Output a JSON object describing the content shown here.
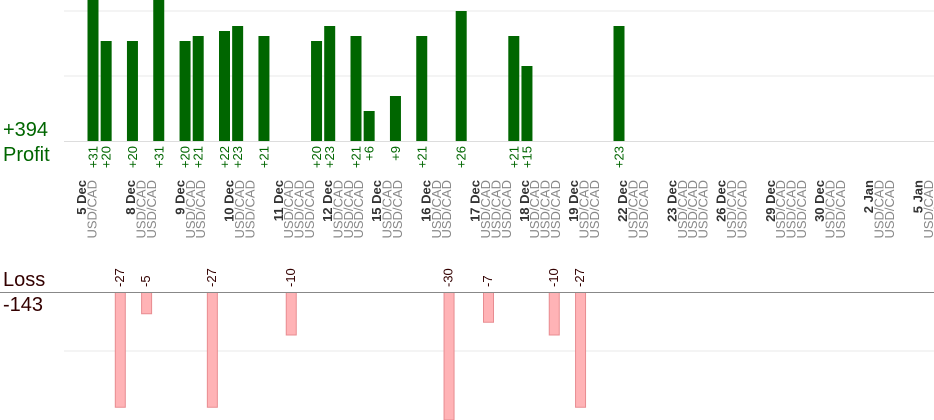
{
  "colors": {
    "profit": "#006600",
    "loss_fill": "#ffb3b6",
    "loss_stroke": "#e88c91",
    "loss_text": "#330000",
    "grid": "#e8e8e8",
    "baseline": "#888888",
    "date_text": "#333333",
    "pair_text": "#888888"
  },
  "summary": {
    "profit_total": "+394",
    "profit_label": "Profit",
    "loss_label": "Loss",
    "loss_total": "-143"
  },
  "chart_data": {
    "type": "bar",
    "title": "",
    "xlabel": "",
    "ylabel": "",
    "profit_axis_max": 30,
    "loss_axis_max": 27,
    "dates": [
      {
        "date": "5 Dec",
        "pairs": [
          "USD/CAD"
        ]
      },
      {
        "date": "8 Dec",
        "pairs": [
          "USD/CAD",
          "USD/CAD"
        ]
      },
      {
        "date": "9 Dec",
        "pairs": [
          "USD/CAD",
          "USD/CAD"
        ]
      },
      {
        "date": "10 Dec",
        "pairs": [
          "USD/CAD",
          "USD/CAD"
        ]
      },
      {
        "date": "11 Dec",
        "pairs": [
          "USD/CAD",
          "USD/CAD",
          "USD/CAD"
        ]
      },
      {
        "date": "12 Dec",
        "pairs": [
          "USD/CAD",
          "USD/CAD",
          "USD/CAD"
        ]
      },
      {
        "date": "15 Dec",
        "pairs": [
          "USD/CAD",
          "USD/CAD"
        ]
      },
      {
        "date": "16 Dec",
        "pairs": [
          "USD/CAD",
          "USD/CAD"
        ]
      },
      {
        "date": "17 Dec",
        "pairs": [
          "USD/CAD",
          "USD/CAD",
          "USD/CAD"
        ]
      },
      {
        "date": "18 Dec",
        "pairs": [
          "USD/CAD",
          "USD/CAD",
          "USD/CAD"
        ]
      },
      {
        "date": "19 Dec",
        "pairs": [
          "USD/CAD",
          "USD/CAD"
        ]
      },
      {
        "date": "22 Dec",
        "pairs": [
          "USD/CAD",
          "USD/CAD"
        ]
      },
      {
        "date": "23 Dec",
        "pairs": [
          "USD/CAD",
          "USD/CAD",
          "USD/CAD"
        ]
      },
      {
        "date": "26 Dec",
        "pairs": [
          "USD/CAD",
          "USD/CAD"
        ]
      },
      {
        "date": "29 Dec",
        "pairs": [
          "USD/CAD",
          "USD/CAD",
          "USD/CAD"
        ]
      },
      {
        "date": "30 Dec",
        "pairs": [
          "USD/CAD",
          "USD/CAD"
        ]
      },
      {
        "date": "2 Jan",
        "pairs": [
          "USD/CAD",
          "USD/CAD"
        ]
      },
      {
        "date": "5 Jan",
        "pairs": [
          "USD/CAD",
          "USD/CAD"
        ]
      }
    ],
    "trades": [
      {
        "date": "5 Dec",
        "pair": "USD/CAD",
        "value": 31
      },
      {
        "date": "8 Dec",
        "pair": "USD/CAD",
        "value": 20
      },
      {
        "date": "8 Dec",
        "pair": "USD/CAD",
        "value": -27
      },
      {
        "date": "9 Dec",
        "pair": "USD/CAD",
        "value": 20
      },
      {
        "date": "9 Dec",
        "pair": "USD/CAD",
        "value": -5
      },
      {
        "date": "10 Dec",
        "pair": "USD/CAD",
        "value": 31
      },
      {
        "date": "10 Dec",
        "pair": "USD/CAD",
        "value": 0
      },
      {
        "date": "11 Dec",
        "pair": "USD/CAD",
        "value": 20
      },
      {
        "date": "11 Dec",
        "pair": "USD/CAD",
        "value": 21
      },
      {
        "date": "11 Dec",
        "pair": "USD/CAD",
        "value": -27
      },
      {
        "date": "12 Dec",
        "pair": "USD/CAD",
        "value": 22
      },
      {
        "date": "12 Dec",
        "pair": "USD/CAD",
        "value": 23
      },
      {
        "date": "12 Dec",
        "pair": "USD/CAD",
        "value": 0
      },
      {
        "date": "15 Dec",
        "pair": "USD/CAD",
        "value": 21
      },
      {
        "date": "15 Dec",
        "pair": "USD/CAD",
        "value": 0
      },
      {
        "date": "16 Dec",
        "pair": "USD/CAD",
        "value": -10
      },
      {
        "date": "16 Dec",
        "pair": "USD/CAD",
        "value": 0
      },
      {
        "date": "17 Dec",
        "pair": "USD/CAD",
        "value": 20
      },
      {
        "date": "17 Dec",
        "pair": "USD/CAD",
        "value": 23
      },
      {
        "date": "17 Dec",
        "pair": "USD/CAD",
        "value": 0
      },
      {
        "date": "18 Dec",
        "pair": "USD/CAD",
        "value": 21
      },
      {
        "date": "18 Dec",
        "pair": "USD/CAD",
        "value": 6
      },
      {
        "date": "18 Dec",
        "pair": "USD/CAD",
        "value": 0
      },
      {
        "date": "19 Dec",
        "pair": "USD/CAD",
        "value": 9
      },
      {
        "date": "19 Dec",
        "pair": "USD/CAD",
        "value": 0
      },
      {
        "date": "22 Dec",
        "pair": "USD/CAD",
        "value": 21
      },
      {
        "date": "22 Dec",
        "pair": "USD/CAD",
        "value": 0
      },
      {
        "date": "23 Dec",
        "pair": "USD/CAD",
        "value": -30
      },
      {
        "date": "23 Dec",
        "pair": "USD/CAD",
        "value": 26
      },
      {
        "date": "23 Dec",
        "pair": "USD/CAD",
        "value": 0
      },
      {
        "date": "26 Dec",
        "pair": "USD/CAD",
        "value": -7
      },
      {
        "date": "26 Dec",
        "pair": "USD/CAD",
        "value": 0
      },
      {
        "date": "29 Dec",
        "pair": "USD/CAD",
        "value": 21
      },
      {
        "date": "29 Dec",
        "pair": "USD/CAD",
        "value": 15
      },
      {
        "date": "29 Dec",
        "pair": "USD/CAD",
        "value": 0
      },
      {
        "date": "30 Dec",
        "pair": "USD/CAD",
        "value": -10
      },
      {
        "date": "30 Dec",
        "pair": "USD/CAD",
        "value": 0
      },
      {
        "date": "2 Jan",
        "pair": "USD/CAD",
        "value": -27
      },
      {
        "date": "2 Jan",
        "pair": "USD/CAD",
        "value": 0
      },
      {
        "date": "5 Jan",
        "pair": "USD/CAD",
        "value": 0
      },
      {
        "date": "5 Jan",
        "pair": "USD/CAD",
        "value": 23
      }
    ]
  }
}
